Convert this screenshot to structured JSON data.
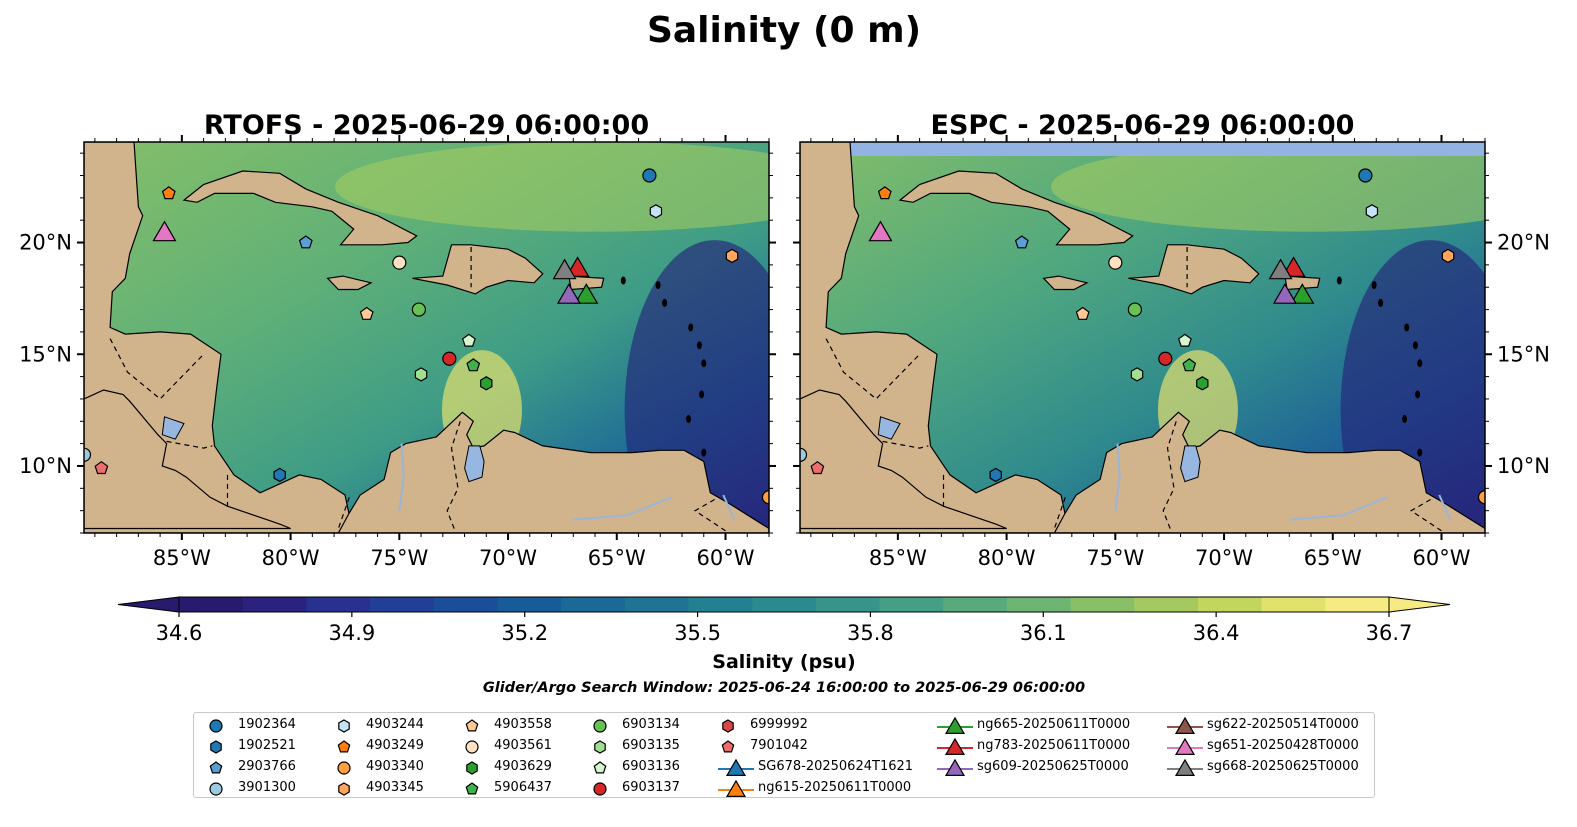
{
  "figure": {
    "suptitle": "Salinity (0 m)",
    "window_text": "Glider/Argo Search Window: 2025-06-24 16:00:00 to 2025-06-29 06:00:00"
  },
  "colorbar": {
    "label": "Salinity (psu)",
    "ticks": [
      "34.6",
      "34.9",
      "35.2",
      "35.5",
      "35.8",
      "36.1",
      "36.4",
      "36.7"
    ],
    "colors": [
      "#281a6c",
      "#2b2280",
      "#28318f",
      "#223f98",
      "#1a4e98",
      "#175c98",
      "#1a6996",
      "#1f7493",
      "#238090",
      "#2a8a8e",
      "#35958a",
      "#449f84",
      "#58a97c",
      "#6eb472",
      "#88bf67",
      "#a4ca5f",
      "#c2d65e",
      "#e0e26c",
      "#f6eb82"
    ]
  },
  "chart_data": [
    {
      "type": "map",
      "title": "RTOFS - 2025-06-29 06:00:00",
      "x_ticks": [
        "85°W",
        "80°W",
        "75°W",
        "70°W",
        "65°W",
        "60°W"
      ],
      "y_ticks": [
        "20°N",
        "15°N",
        "10°N"
      ],
      "y_tick_side": "left",
      "lon_range": [
        -89.5,
        -58.0
      ],
      "lat_range": [
        7.0,
        24.5
      ],
      "grid": false
    },
    {
      "type": "map",
      "title": "ESPC - 2025-06-29 06:00:00",
      "x_ticks": [
        "85°W",
        "80°W",
        "75°W",
        "70°W",
        "65°W",
        "60°W"
      ],
      "y_ticks": [
        "20°N",
        "15°N",
        "10°N"
      ],
      "y_tick_side": "right",
      "lon_range": [
        -89.5,
        -58.0
      ],
      "lat_range": [
        7.0,
        24.5
      ],
      "grid": false
    }
  ],
  "observations": [
    {
      "id": "1902364",
      "lon": -63.5,
      "lat": 23.0,
      "color": "#1f77b4",
      "marker": "circle"
    },
    {
      "id": "1902521",
      "lon": -80.5,
      "lat": 9.6,
      "color": "#1f77b4",
      "marker": "hexagon"
    },
    {
      "id": "2903766",
      "lon": -79.3,
      "lat": 20.0,
      "color": "#5a9fd4",
      "marker": "pentagon"
    },
    {
      "id": "3901300",
      "lon": -89.5,
      "lat": 10.5,
      "color": "#9ecae1",
      "marker": "circle"
    },
    {
      "id": "4903244",
      "lon": -63.2,
      "lat": 21.4,
      "color": "#c6e2f7",
      "marker": "hexagon"
    },
    {
      "id": "4903249",
      "lon": -85.6,
      "lat": 22.2,
      "color": "#ff7f0e",
      "marker": "pentagon"
    },
    {
      "id": "4903340",
      "lon": -58.0,
      "lat": 8.6,
      "color": "#ff9f40",
      "marker": "circle"
    },
    {
      "id": "4903345",
      "lon": -59.7,
      "lat": 19.4,
      "color": "#ffa65c",
      "marker": "hexagon"
    },
    {
      "id": "4903558",
      "lon": -76.5,
      "lat": 16.8,
      "color": "#ffc994",
      "marker": "pentagon"
    },
    {
      "id": "4903561",
      "lon": -75.0,
      "lat": 19.1,
      "color": "#ffe0c0",
      "marker": "circle"
    },
    {
      "id": "4903629",
      "lon": -71.0,
      "lat": 13.7,
      "color": "#2ca02c",
      "marker": "hexagon"
    },
    {
      "id": "5906437",
      "lon": -71.6,
      "lat": 14.5,
      "color": "#3fb24a",
      "marker": "pentagon"
    },
    {
      "id": "6903134",
      "lon": -74.1,
      "lat": 17.0,
      "color": "#66c255",
      "marker": "circle"
    },
    {
      "id": "6903135",
      "lon": -74.0,
      "lat": 14.1,
      "color": "#a2dd91",
      "marker": "hexagon"
    },
    {
      "id": "6903136",
      "lon": -71.8,
      "lat": 15.6,
      "color": "#d7f5cf",
      "marker": "pentagon"
    },
    {
      "id": "6903137",
      "lon": -72.7,
      "lat": 14.8,
      "color": "#d62728",
      "marker": "circle"
    },
    {
      "id": "6999992",
      "lon": null,
      "lat": null,
      "color": "#d9474a",
      "marker": "hexagon"
    },
    {
      "id": "7901042",
      "lon": -88.7,
      "lat": 9.9,
      "color": "#ee6e6e",
      "marker": "pentagon"
    }
  ],
  "gliders": [
    {
      "id": "SG678-20250624T1621",
      "lon": null,
      "lat": null,
      "color": "#1f77b4"
    },
    {
      "id": "ng615-20250611T0000",
      "lon": null,
      "lat": null,
      "color": "#ff7f0e"
    },
    {
      "id": "ng665-20250611T0000",
      "lon": -66.4,
      "lat": 17.6,
      "color": "#2ca02c"
    },
    {
      "id": "ng783-20250611T0000",
      "lon": -66.8,
      "lat": 18.8,
      "color": "#d62728"
    },
    {
      "id": "sg609-20250625T0000",
      "lon": -67.2,
      "lat": 17.6,
      "color": "#9467bd"
    },
    {
      "id": "sg622-20250514T0000",
      "lon": null,
      "lat": null,
      "color": "#8c564b"
    },
    {
      "id": "sg651-20250428T0000",
      "lon": -85.8,
      "lat": 20.4,
      "color": "#e377c2"
    },
    {
      "id": "sg668-20250625T0000",
      "lon": -67.4,
      "lat": 18.7,
      "color": "#7f7f7f"
    }
  ]
}
